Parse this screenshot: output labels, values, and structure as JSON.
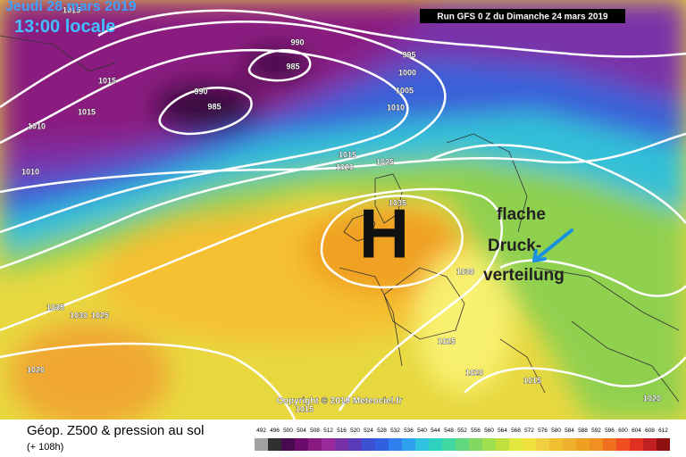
{
  "header": {
    "date": "Jeudi 28 mars 2019",
    "time": "13:00 locale",
    "run": "Run GFS 0 Z du Dimanche 24 mars 2019"
  },
  "annotations": {
    "high": "H",
    "note": [
      "flache",
      "Druck-",
      "verteilung"
    ]
  },
  "isobar_labels": [
    "1015",
    "990",
    "985",
    "995",
    "1000",
    "1005",
    "1010",
    "1015",
    "1015",
    "990",
    "985",
    "1010",
    "1010",
    "1015",
    "1020",
    "1025",
    "1035",
    "1030",
    "1035",
    "1030",
    "1025",
    "1025",
    "1020",
    "1020",
    "1015",
    "1015",
    "1020"
  ],
  "footer": {
    "copyright": "Copyright © 2019 Meteociel.fr",
    "title": "Géop. Z500 & pression au sol",
    "forecast": "(+ 108h)"
  },
  "scale": {
    "labels": [
      492,
      496,
      500,
      504,
      508,
      512,
      516,
      520,
      524,
      528,
      532,
      536,
      540,
      544,
      548,
      552,
      556,
      560,
      564,
      568,
      572,
      576,
      580,
      584,
      588,
      592,
      596,
      600,
      604,
      608,
      612
    ]
  }
}
